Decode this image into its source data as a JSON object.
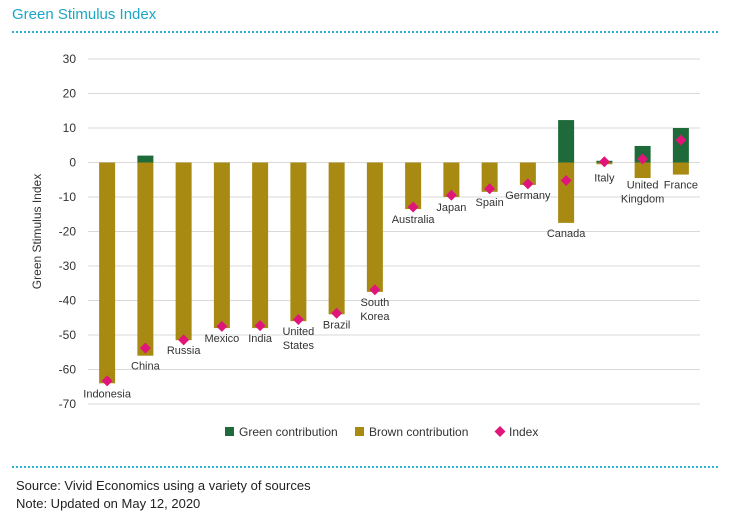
{
  "title": "Green Stimulus Index",
  "footer": {
    "source": "Source: Vivid Economics using a variety of sources",
    "note": "Note: Updated on May 12, 2020"
  },
  "colors": {
    "title": "#1aa7c7",
    "rule": "#2bb3d1",
    "green": "#1e6a3a",
    "brown": "#a88a12",
    "index": "#e0157a",
    "grid": "#d9d9d9"
  },
  "chart_data": {
    "type": "bar",
    "stacked": true,
    "ylabel": "Green Stimulus Index",
    "xlabel": "",
    "ylim": [
      -70,
      30
    ],
    "yticks": [
      30,
      20,
      10,
      0,
      -10,
      -20,
      -30,
      -40,
      -50,
      -60,
      -70
    ],
    "grid": true,
    "legend_position": "bottom",
    "categories": [
      {
        "name": "Indonesia",
        "lines": [
          "Indonesia"
        ],
        "label_side": "bottom"
      },
      {
        "name": "China",
        "lines": [
          "China"
        ],
        "label_side": "bottom"
      },
      {
        "name": "Russia",
        "lines": [
          "Russia"
        ],
        "label_side": "bottom"
      },
      {
        "name": "Mexico",
        "lines": [
          "Mexico"
        ],
        "label_side": "bottom"
      },
      {
        "name": "India",
        "lines": [
          "India"
        ],
        "label_side": "bottom"
      },
      {
        "name": "United States",
        "lines": [
          "United",
          "States"
        ],
        "label_side": "bottom"
      },
      {
        "name": "Brazil",
        "lines": [
          "Brazil"
        ],
        "label_side": "bottom"
      },
      {
        "name": "South Korea",
        "lines": [
          "South",
          "Korea"
        ],
        "label_side": "bottom"
      },
      {
        "name": "Australia",
        "lines": [
          "Australia"
        ],
        "label_side": "bottom"
      },
      {
        "name": "Japan",
        "lines": [
          "Japan"
        ],
        "label_side": "bottom"
      },
      {
        "name": "Spain",
        "lines": [
          "Spain"
        ],
        "label_side": "bottom"
      },
      {
        "name": "Germany",
        "lines": [
          "Germany"
        ],
        "label_side": "bottom"
      },
      {
        "name": "Canada",
        "lines": [
          "Canada"
        ],
        "label_side": "bottom"
      },
      {
        "name": "Italy",
        "lines": [
          "Italy"
        ],
        "label_side": "top"
      },
      {
        "name": "United Kingdom",
        "lines": [
          "United",
          "Kingdom"
        ],
        "label_side": "top"
      },
      {
        "name": "France",
        "lines": [
          "France"
        ],
        "label_side": "top"
      }
    ],
    "series": [
      {
        "name": "Green contribution",
        "kind": "bar",
        "values": [
          0,
          2,
          0,
          0,
          0,
          0,
          0,
          0,
          0,
          0,
          0,
          0,
          12.3,
          0.5,
          4.8,
          10
        ]
      },
      {
        "name": "Brown contribution",
        "kind": "bar",
        "values": [
          -64,
          -56,
          -51.5,
          -48,
          -48,
          -46,
          -44,
          -37.5,
          -13.5,
          -10,
          -8.5,
          -6.5,
          -17.5,
          -0.5,
          -4.5,
          -3.5
        ]
      },
      {
        "name": "Index",
        "kind": "marker",
        "values": [
          -63.3,
          -53.8,
          -51.4,
          -47.5,
          -47.3,
          -45.5,
          -43.7,
          -36.9,
          -12.9,
          -9.5,
          -7.6,
          -6.2,
          -5.2,
          0.2,
          1,
          6.5
        ]
      }
    ]
  }
}
